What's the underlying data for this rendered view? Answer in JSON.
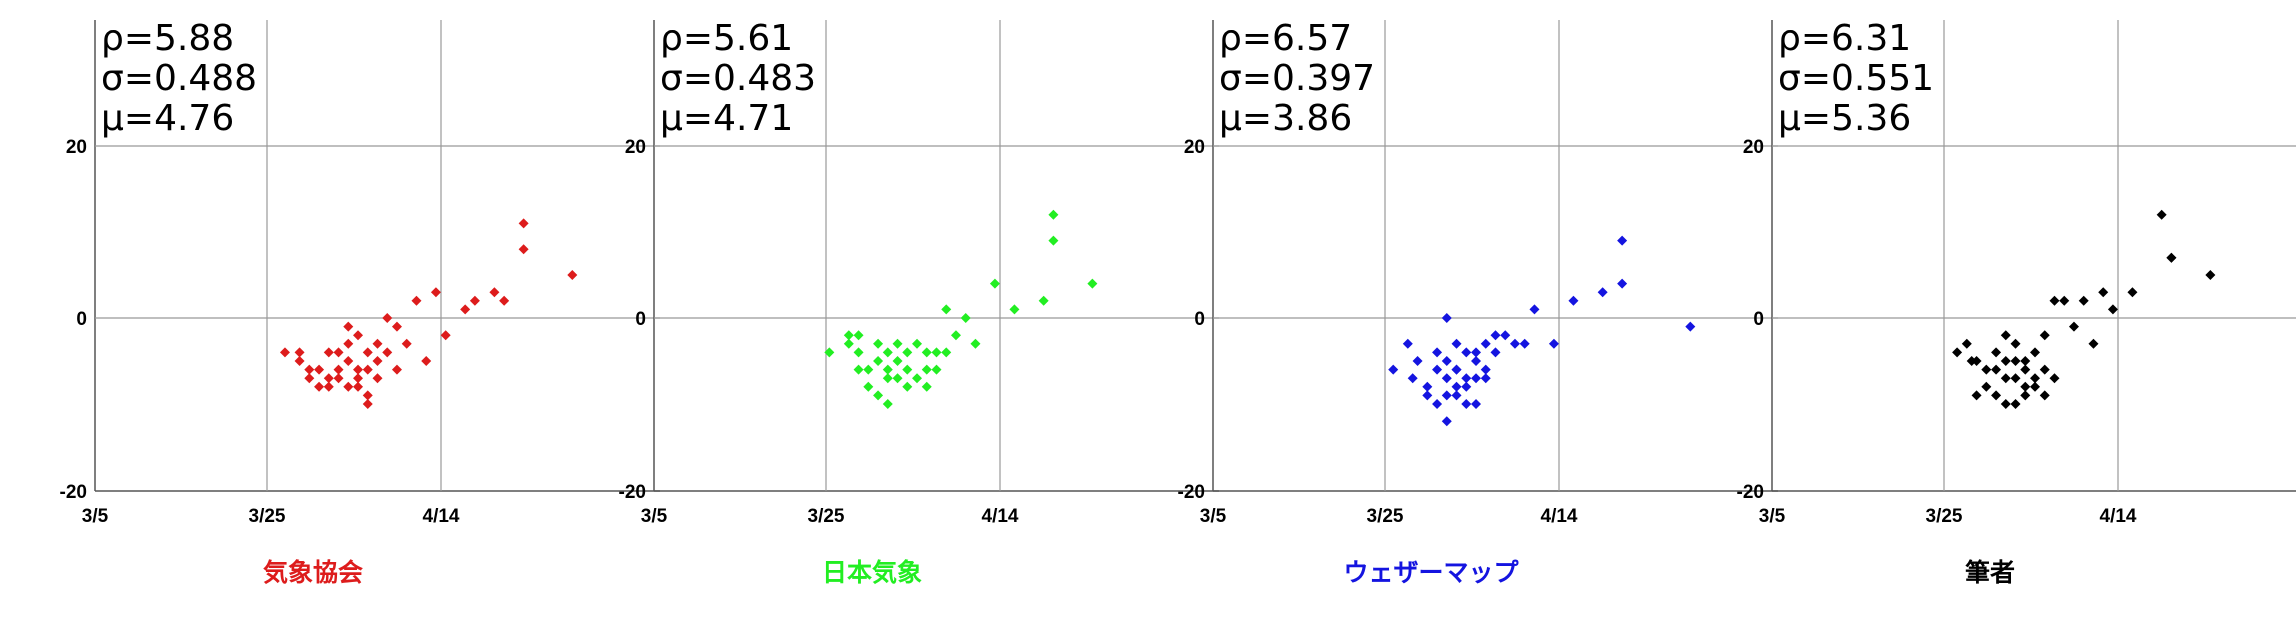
{
  "chart_data": [
    {
      "type": "scatter",
      "title": "気象協会",
      "color": "#dd1c1c",
      "stats": [
        "ρ=5.88",
        "σ=0.488",
        "μ=4.76"
      ],
      "x_ticks": [
        "3/5",
        "3/25",
        "4/14"
      ],
      "y_ticks": [
        "20",
        "0",
        "-20"
      ],
      "xlim": [
        0,
        58
      ],
      "ylim": [
        -20,
        20
      ],
      "grid": true,
      "x": [
        19.5,
        21,
        21,
        22,
        22,
        23,
        23,
        24,
        24,
        24,
        25,
        25,
        25,
        26,
        26,
        26,
        26,
        27,
        27,
        27,
        27,
        28,
        28,
        28,
        28,
        29,
        29,
        29,
        30,
        30,
        31,
        31,
        32,
        33,
        34,
        35,
        36,
        38,
        39,
        41,
        42,
        44,
        44,
        49
      ],
      "y": [
        -4,
        -4,
        -5,
        -6,
        -7,
        -6,
        -8,
        -4,
        -7,
        -8,
        -4,
        -6,
        -7,
        -1,
        -3,
        -5,
        -8,
        -2,
        -6,
        -7,
        -8,
        -4,
        -6,
        -9,
        -10,
        -3,
        -5,
        -7,
        0,
        -4,
        -6,
        -1,
        -3,
        2,
        -5,
        3,
        -2,
        1,
        2,
        3,
        2,
        8,
        11,
        5
      ]
    },
    {
      "type": "scatter",
      "title": "日本気象",
      "color": "#22ee22",
      "stats": [
        "ρ=5.61",
        "σ=0.483",
        "μ=4.71"
      ],
      "x_ticks": [
        "3/5",
        "3/25",
        "4/14"
      ],
      "y_ticks": [
        "20",
        "0",
        "-20"
      ],
      "xlim": [
        0,
        58
      ],
      "ylim": [
        -20,
        20
      ],
      "grid": true,
      "x": [
        18,
        20,
        20,
        21,
        21,
        21,
        22,
        22,
        23,
        23,
        23,
        24,
        24,
        24,
        24,
        25,
        25,
        25,
        26,
        26,
        26,
        27,
        27,
        28,
        28,
        28,
        29,
        29,
        30,
        30,
        31,
        32,
        33,
        35,
        37,
        40,
        41,
        41,
        45
      ],
      "y": [
        -4,
        -2,
        -3,
        -4,
        -6,
        -2,
        -6,
        -8,
        -3,
        -5,
        -9,
        -4,
        -7,
        -10,
        -6,
        -3,
        -5,
        -7,
        -4,
        -6,
        -8,
        -3,
        -7,
        -4,
        -6,
        -8,
        -4,
        -6,
        1,
        -4,
        -2,
        0,
        -3,
        4,
        1,
        2,
        9,
        12,
        4
      ]
    },
    {
      "type": "scatter",
      "title": "ウェザーマップ",
      "color": "#1414e0",
      "stats": [
        "ρ=6.57",
        "σ=0.397",
        "μ=3.86"
      ],
      "x_ticks": [
        "3/5",
        "3/25",
        "4/14"
      ],
      "y_ticks": [
        "20",
        "0",
        "-20"
      ],
      "xlim": [
        0,
        58
      ],
      "ylim": [
        -20,
        20
      ],
      "grid": true,
      "x": [
        18.5,
        20,
        20.5,
        21,
        22,
        22,
        23,
        23,
        23,
        24,
        24,
        24,
        24,
        24,
        25,
        25,
        25,
        25,
        25,
        26,
        26,
        26,
        26,
        27,
        27,
        27,
        27,
        28,
        28,
        28,
        29,
        29,
        30,
        31,
        32,
        33,
        35,
        37,
        40,
        42,
        42,
        49
      ],
      "y": [
        -6,
        -3,
        -7,
        -5,
        -8,
        -9,
        -4,
        -6,
        -10,
        0,
        -5,
        -7,
        -9,
        -12,
        -3,
        -6,
        -8,
        -6,
        -9,
        -4,
        -7,
        -8,
        -10,
        -4,
        -5,
        -7,
        -10,
        -3,
        -6,
        -7,
        -2,
        -4,
        -2,
        -3,
        -3,
        1,
        -3,
        2,
        3,
        9,
        4,
        -1
      ]
    },
    {
      "type": "scatter",
      "title": "筆者",
      "color": "#000000",
      "stats": [
        "ρ=6.31",
        "σ=0.551",
        "μ=5.36"
      ],
      "x_ticks": [
        "3/5",
        "3/25",
        "4/14"
      ],
      "y_ticks": [
        "20",
        "0",
        "-20"
      ],
      "xlim": [
        0,
        58
      ],
      "ylim": [
        -20,
        20
      ],
      "grid": true,
      "x": [
        19,
        20,
        20.5,
        21,
        21,
        22,
        22,
        23,
        23,
        23,
        24,
        24,
        24,
        24,
        25,
        25,
        25,
        25,
        26,
        26,
        26,
        26,
        27,
        27,
        27,
        28,
        28,
        28,
        29,
        29,
        30,
        31,
        32,
        33,
        34,
        35,
        37,
        40,
        41,
        41,
        45
      ],
      "y": [
        -4,
        -3,
        -5,
        -5,
        -9,
        -6,
        -8,
        -4,
        -6,
        -9,
        -2,
        -5,
        -7,
        -10,
        -3,
        -5,
        -7,
        -10,
        -5,
        -6,
        -8,
        -9,
        -4,
        -7,
        -8,
        -2,
        -6,
        -9,
        -7,
        2,
        2,
        -1,
        2,
        -3,
        3,
        1,
        3,
        12,
        7,
        7,
        5
      ]
    }
  ]
}
